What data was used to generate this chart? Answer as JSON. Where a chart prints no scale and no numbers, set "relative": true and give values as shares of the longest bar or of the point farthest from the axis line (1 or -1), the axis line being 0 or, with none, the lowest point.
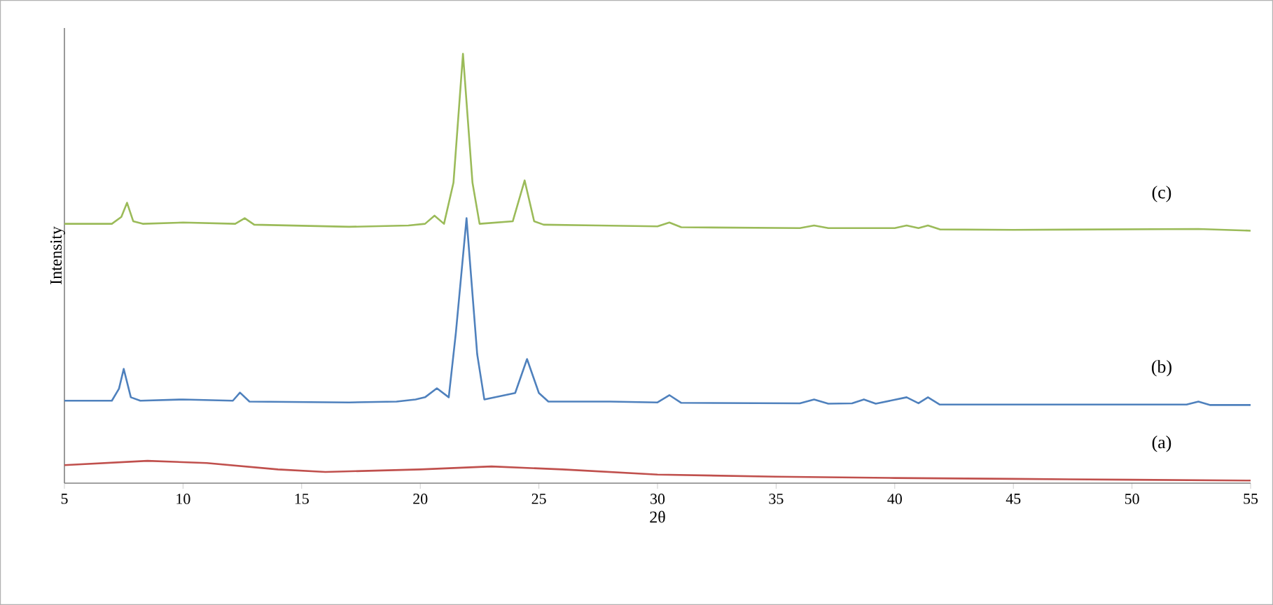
{
  "chart_data": {
    "type": "line",
    "xlabel": "2θ",
    "ylabel": "Intensity",
    "relative": true,
    "xlim": [
      5,
      55
    ],
    "xticks": [
      5,
      10,
      15,
      20,
      25,
      30,
      35,
      40,
      45,
      50,
      55
    ],
    "series": [
      {
        "name": "(c)",
        "color": "#9bbb59",
        "x": [
          5,
          7.0,
          7.4,
          7.64,
          7.9,
          8.3,
          10,
          12.2,
          12.6,
          13.0,
          17,
          19.5,
          20.2,
          20.6,
          21.0,
          21.4,
          21.8,
          22.2,
          22.5,
          23.9,
          24.4,
          24.8,
          25.2,
          27.5,
          30.0,
          30.5,
          31,
          36.0,
          36.6,
          37.2,
          40,
          40.5,
          41.0,
          41.4,
          41.9,
          45,
          52.8,
          55
        ],
        "values": [
          0.604,
          0.604,
          0.62,
          0.653,
          0.61,
          0.604,
          0.607,
          0.604,
          0.617,
          0.602,
          0.597,
          0.6,
          0.604,
          0.623,
          0.604,
          0.7,
          1.0,
          0.7,
          0.604,
          0.61,
          0.705,
          0.61,
          0.602,
          0.6,
          0.598,
          0.607,
          0.596,
          0.594,
          0.6,
          0.594,
          0.594,
          0.6,
          0.594,
          0.6,
          0.591,
          0.59,
          0.592,
          0.588
        ]
      },
      {
        "name": "(b)",
        "color": "#4f81bd",
        "x": [
          5,
          7.0,
          7.3,
          7.5,
          7.8,
          8.2,
          10,
          12.1,
          12.4,
          12.8,
          17,
          19,
          19.8,
          20.2,
          20.7,
          21.2,
          21.5,
          21.95,
          22.4,
          22.7,
          24.0,
          24.5,
          25.0,
          25.4,
          28,
          30,
          30.5,
          31,
          36,
          36.6,
          37.2,
          38.2,
          38.7,
          39.2,
          40.5,
          41.0,
          41.4,
          41.9,
          45,
          52.3,
          52.8,
          53.3,
          55
        ],
        "values": [
          0.192,
          0.192,
          0.22,
          0.266,
          0.2,
          0.192,
          0.195,
          0.192,
          0.211,
          0.19,
          0.188,
          0.19,
          0.195,
          0.2,
          0.221,
          0.2,
          0.35,
          0.617,
          0.3,
          0.195,
          0.21,
          0.289,
          0.21,
          0.19,
          0.19,
          0.188,
          0.205,
          0.187,
          0.186,
          0.195,
          0.185,
          0.186,
          0.195,
          0.185,
          0.2,
          0.186,
          0.2,
          0.183,
          0.183,
          0.183,
          0.19,
          0.182,
          0.182
        ]
      },
      {
        "name": "(a)",
        "color": "#c0504d",
        "x": [
          5,
          8.5,
          11,
          14,
          16,
          20,
          23,
          26,
          30,
          35,
          40,
          45,
          50,
          55
        ],
        "values": [
          0.042,
          0.052,
          0.047,
          0.032,
          0.026,
          0.032,
          0.039,
          0.032,
          0.02,
          0.015,
          0.012,
          0.01,
          0.008,
          0.006
        ]
      }
    ]
  }
}
